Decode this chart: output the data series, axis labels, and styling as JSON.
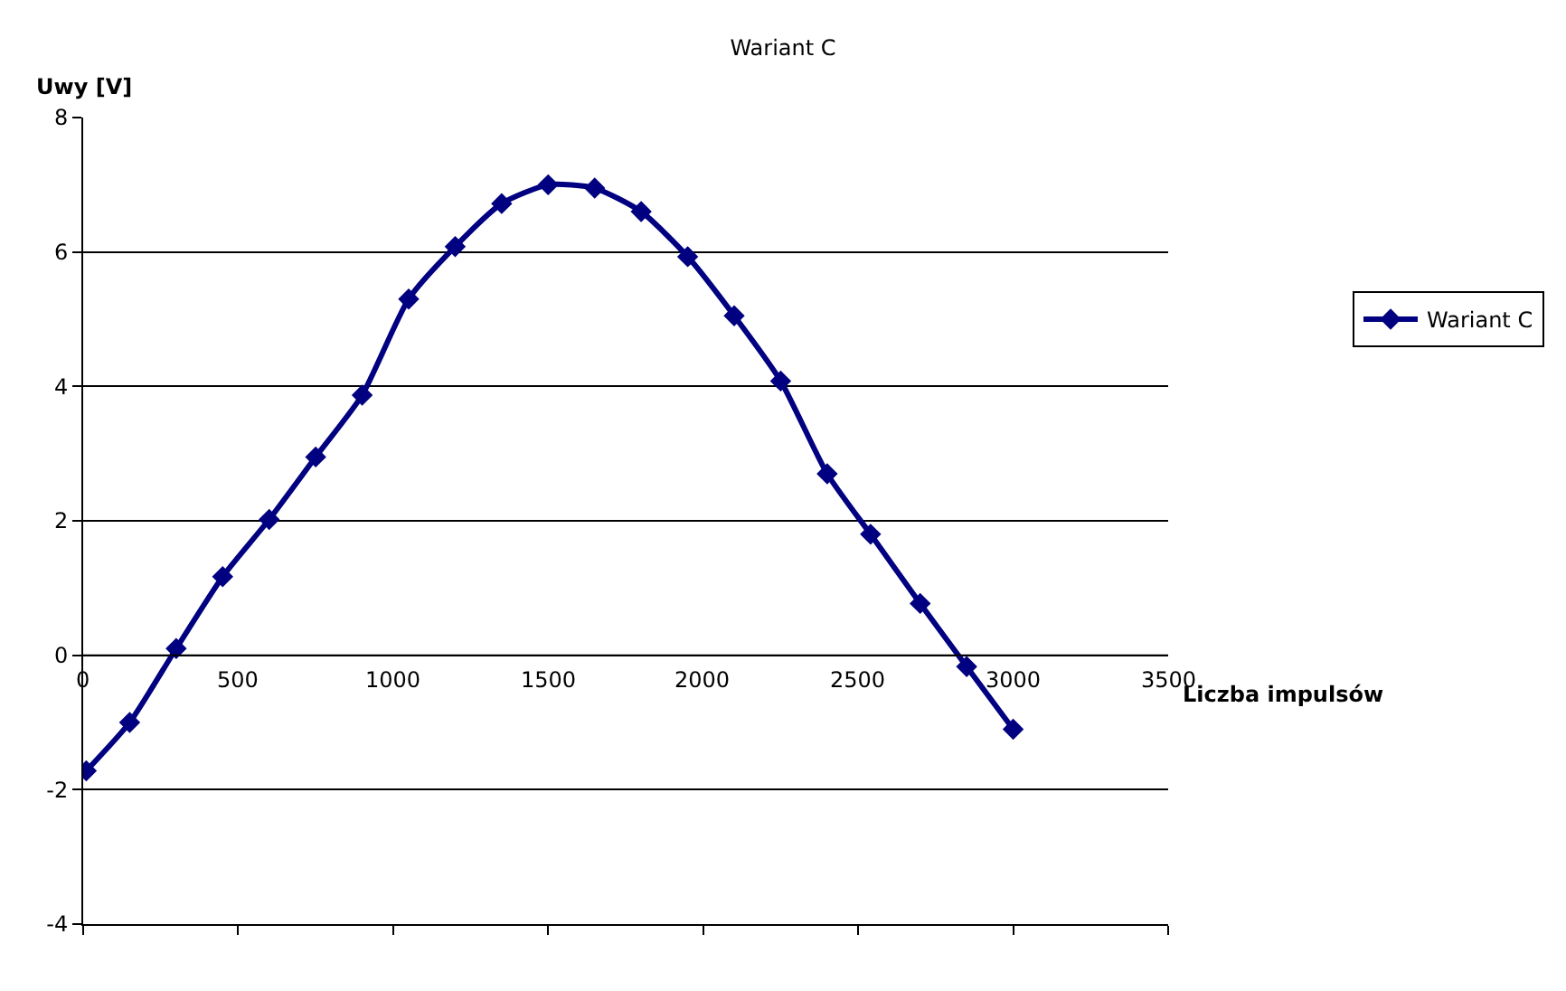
{
  "chart_data": {
    "type": "line",
    "title": "Wariant C",
    "xlabel": "Liczba impulsów",
    "ylabel": "Uwy [V]",
    "x": [
      10,
      150,
      300,
      450,
      600,
      750,
      900,
      1050,
      1200,
      1350,
      1500,
      1650,
      1800,
      1950,
      2100,
      2250,
      2400,
      2540,
      2700,
      2850,
      3000
    ],
    "series": [
      {
        "name": "Wariant C",
        "color": "#000080",
        "values": [
          -1.72,
          -1.0,
          0.1,
          1.17,
          2.02,
          2.95,
          3.87,
          5.3,
          6.08,
          6.72,
          7.0,
          6.95,
          6.6,
          5.93,
          5.05,
          4.08,
          2.7,
          1.8,
          0.77,
          -0.17,
          -1.1
        ]
      }
    ],
    "xlim": [
      0,
      3500
    ],
    "xticks": [
      0,
      500,
      1000,
      1500,
      2000,
      2500,
      3000,
      3500
    ],
    "ylim": [
      -4,
      8
    ],
    "yticks": [
      -4,
      -2,
      0,
      2,
      4,
      6,
      8
    ],
    "grid": "y",
    "legend": "right",
    "marker": "diamond",
    "line_style": "solid"
  }
}
